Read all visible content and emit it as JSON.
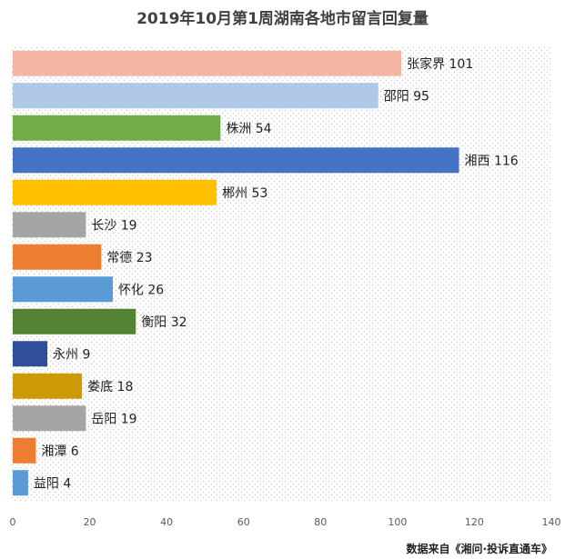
{
  "chart_data": {
    "type": "bar",
    "orientation": "horizontal",
    "title": "2019年10月第1周湖南各地市留言回复量",
    "categories": [
      "张家界",
      "邵阳",
      "株洲",
      "湘西",
      "郴州",
      "长沙",
      "常德",
      "怀化",
      "衡阳",
      "永州",
      "娄底",
      "岳阳",
      "湘潭",
      "益阳"
    ],
    "values": [
      101,
      95,
      54,
      116,
      53,
      19,
      23,
      26,
      32,
      9,
      18,
      19,
      6,
      4
    ],
    "colors": [
      "#f4b6a2",
      "#b0c8e8",
      "#71ad47",
      "#4472c4",
      "#ffc000",
      "#a5a5a5",
      "#ed7d31",
      "#5b9bd5",
      "#548235",
      "#2f4f99",
      "#cc9a06",
      "#a5a5a5",
      "#ed7d31",
      "#5b9bd5"
    ],
    "xlim": [
      0,
      140
    ],
    "xticks": [
      0,
      20,
      40,
      60,
      80,
      100,
      120,
      140
    ],
    "background_pattern": "dotted",
    "xlabel": "",
    "ylabel": ""
  },
  "source": "数据来自《湘问·投诉直通车》"
}
